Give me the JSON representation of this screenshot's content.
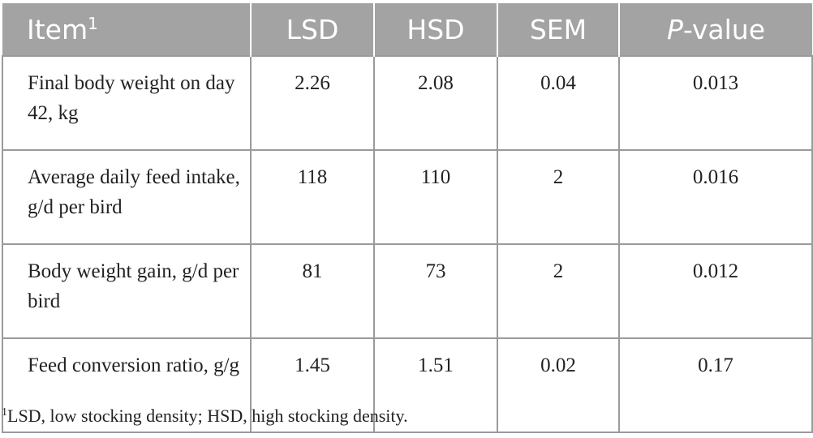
{
  "table": {
    "header": [
      {
        "text": "Item",
        "sup": "1"
      },
      "LSD",
      "HSD",
      "SEM",
      {
        "italic": "P",
        "text": "-value"
      }
    ],
    "rows": [
      [
        "Final body weight on day 42, kg",
        "2.26",
        "2.08",
        "0.04",
        "0.013"
      ],
      [
        "Average daily feed intake, g/d per bird",
        "118",
        "110",
        "2",
        "0.016"
      ],
      [
        "Body weight gain, g/d per bird",
        "81",
        "73",
        "2",
        "0.012"
      ],
      [
        "Feed conversion ratio, g/g",
        "1.45",
        "1.51",
        "0.02",
        "0.17"
      ]
    ]
  },
  "footnote": {
    "marker": "1",
    "text": "LSD, low stocking density; HSD, high stocking density."
  }
}
